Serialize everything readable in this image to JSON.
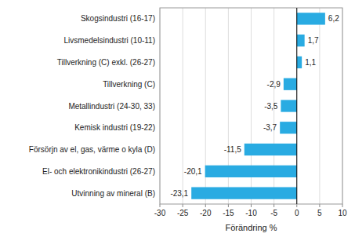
{
  "chart_data": {
    "type": "bar",
    "orientation": "horizontal",
    "xlabel": "Förändring %",
    "categories": [
      "Utvinning av mineral (B)",
      "El- och elektronikindustri (26-27)",
      "Försörjn av el, gas, värme o kyla (D)",
      "Kemisk industri (19-22)",
      "Metallindustri (24-30, 33)",
      "Tillverkning (C)",
      "Tillverkning (C) exkl. (26-27)",
      "Livsmedelsindustri (10-11)",
      "Skogsindustri (16-17)"
    ],
    "values": [
      -23.1,
      -20.1,
      -11.5,
      -3.7,
      -3.5,
      -2.9,
      1.1,
      1.7,
      6.2
    ],
    "value_labels": [
      "-23,1",
      "-20,1",
      "-11,5",
      "-3,7",
      "-3,5",
      "-2,9",
      "1,1",
      "1,7",
      "6,2"
    ],
    "data_labels": true,
    "color": "#29abe2",
    "xlim": [
      -30,
      10
    ],
    "xticks": [
      -30,
      -25,
      -20,
      -15,
      -10,
      -5,
      0,
      5,
      10
    ],
    "grid": true
  }
}
